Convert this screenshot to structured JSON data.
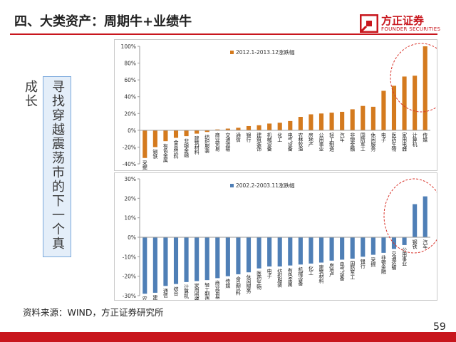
{
  "header": {
    "title": "四、大类资产：周期牛+业绩牛",
    "logo_cn": "方正证券",
    "logo_en": "FOUNDER SECURITIES",
    "accent_color": "#c8161d"
  },
  "side_note": {
    "text": "寻找穿越震荡市的下一个真成长"
  },
  "footer": {
    "source": "资料来源：WIND，方正证券研究所",
    "page_number": "59"
  },
  "chart_data": [
    {
      "type": "bar",
      "legend": "2012.1-2013.12涨跌幅",
      "legend_position": "top-left",
      "color": "#d47a1e",
      "ylim": [
        -40,
        100
      ],
      "yticks": [
        -40,
        -20,
        0,
        20,
        40,
        60,
        80,
        100
      ],
      "ytick_labels": [
        "-40%",
        "-20%",
        "0%",
        "20%",
        "40%",
        "60%",
        "80%",
        "100%"
      ],
      "grid": false,
      "highlight": "dashed red ellipse around top bars",
      "categories": [
        "采掘",
        "钢铁",
        "有色金属",
        "食品饮料",
        "非银金融",
        "建筑材料",
        "纺织服装",
        "商业贸易",
        "交通运输",
        "通信",
        "银行",
        "建筑装饰",
        "机械设备",
        "化工",
        "电气设备",
        "农林牧渔",
        "房地产",
        "公用事业",
        "轻工制造",
        "汽车",
        "非银金融",
        "国防军工",
        "休闲服务",
        "电子",
        "医药生物",
        "家用电器",
        "计算机",
        "传媒"
      ],
      "values": [
        -33,
        -20,
        -13,
        -9,
        -7,
        -4,
        -2,
        1,
        2,
        3,
        5,
        6,
        8,
        9,
        11,
        16,
        19,
        20,
        21,
        22,
        25,
        29,
        28,
        47,
        53,
        64,
        65,
        100
      ]
    },
    {
      "type": "bar",
      "legend": "2002.2-2003.11涨跌幅",
      "legend_position": "top-left",
      "color": "#4f7fb6",
      "ylim": [
        -30,
        30
      ],
      "yticks": [
        -30,
        -20,
        -10,
        0,
        10,
        20,
        30
      ],
      "ytick_labels": [
        "-30%",
        "-20%",
        "-10%",
        "0%",
        "10%",
        "20%",
        "30%"
      ],
      "grid": false,
      "highlight": "dashed red ellipse around top bars",
      "categories": [
        "农林牧渔",
        "建筑装饰",
        "通信",
        "综合",
        "计算机",
        "家用电器",
        "轻工制造",
        "商业贸易",
        "传媒",
        "食品饮料",
        "休闲服务",
        "医药生物",
        "电子",
        "纺织服装",
        "有色金属",
        "机械设备",
        "化工",
        "建筑材料",
        "房地产",
        "电气设备",
        "国防军工",
        "银行",
        "采掘",
        "非银金融",
        "交通运输",
        "公用事业",
        "钢铁",
        "汽车"
      ],
      "values": [
        -29,
        -28.5,
        -25,
        -24,
        -23,
        -22.5,
        -22,
        -21,
        -20,
        -19,
        -18,
        -16,
        -15,
        -15,
        -14.5,
        -14,
        -13.5,
        -13,
        -12,
        -11.5,
        -11,
        -10,
        -9,
        -8,
        -6,
        -4,
        17,
        21
      ]
    }
  ]
}
